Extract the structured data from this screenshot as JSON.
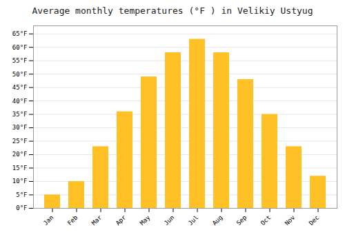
{
  "chart_data": {
    "type": "bar",
    "title": "Average monthly temperatures (°F ) in Velikiy Ustyug",
    "categories": [
      "Jan",
      "Feb",
      "Mar",
      "Apr",
      "May",
      "Jun",
      "Jul",
      "Aug",
      "Sep",
      "Oct",
      "Nov",
      "Dec"
    ],
    "values": [
      5,
      10,
      23,
      36,
      49,
      58,
      63,
      58,
      48,
      35,
      23,
      12
    ],
    "color": "#FFC125",
    "ylim": [
      0,
      68
    ],
    "yticks": [
      {
        "value": 0,
        "label": "0°F"
      },
      {
        "value": 5,
        "label": "5°F"
      },
      {
        "value": 10,
        "label": "10°F"
      },
      {
        "value": 15,
        "label": "15°F"
      },
      {
        "value": 20,
        "label": "20°F"
      },
      {
        "value": 25,
        "label": "25°F"
      },
      {
        "value": 30,
        "label": "30°F"
      },
      {
        "value": 35,
        "label": "35°F"
      },
      {
        "value": 40,
        "label": "40°F"
      },
      {
        "value": 45,
        "label": "45°F"
      },
      {
        "value": 50,
        "label": "50°F"
      },
      {
        "value": 55,
        "label": "55°F"
      },
      {
        "value": 60,
        "label": "60°F"
      },
      {
        "value": 65,
        "label": "65°F"
      }
    ],
    "grid": true
  }
}
